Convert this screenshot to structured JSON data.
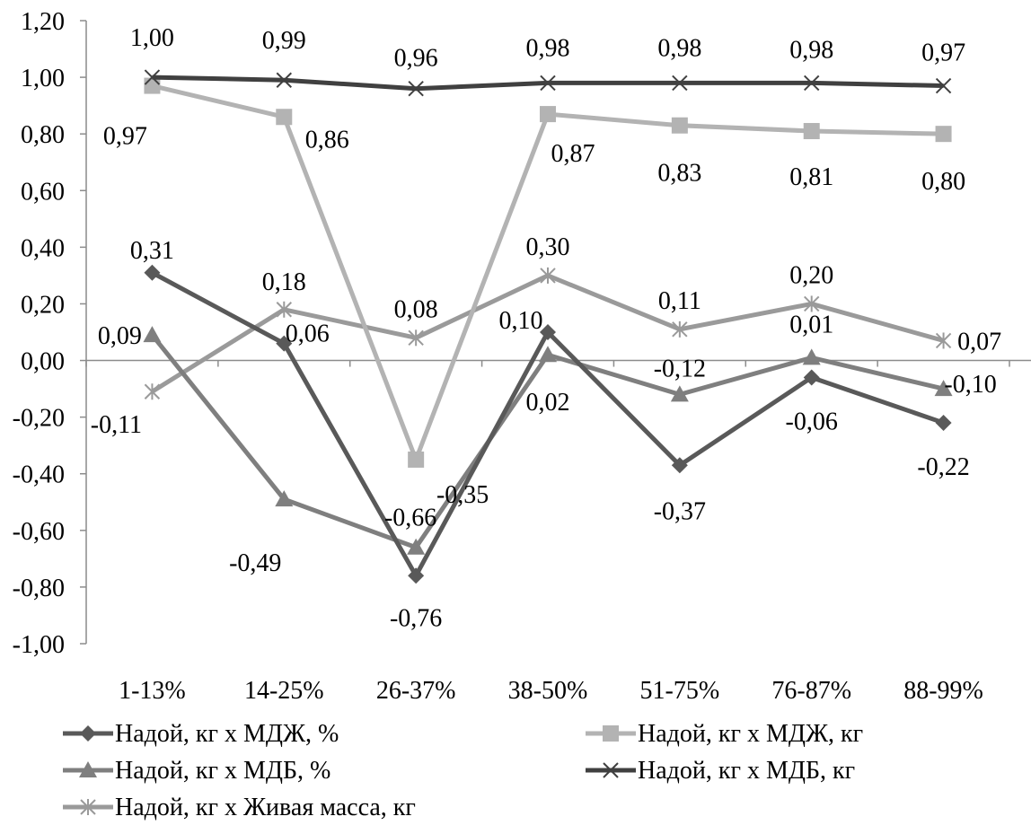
{
  "chart_data": {
    "type": "line",
    "title": "",
    "xlabel": "",
    "ylabel": "",
    "categories": [
      "1-13%",
      "14-25%",
      "26-37%",
      "38-50%",
      "51-75%",
      "76-87%",
      "88-99%"
    ],
    "ylim": [
      -1.0,
      1.2
    ],
    "y_ticks": [
      {
        "value": 1.2,
        "label": "1,20"
      },
      {
        "value": 1.0,
        "label": "1,00"
      },
      {
        "value": 0.8,
        "label": "0,80"
      },
      {
        "value": 0.6,
        "label": "0,60"
      },
      {
        "value": 0.4,
        "label": "0,40"
      },
      {
        "value": 0.2,
        "label": "0,20"
      },
      {
        "value": 0.0,
        "label": "0,00"
      },
      {
        "value": -0.2,
        "label": "-0,20"
      },
      {
        "value": -0.4,
        "label": "-0,40"
      },
      {
        "value": -0.6,
        "label": "-0,60"
      },
      {
        "value": -0.8,
        "label": "-0,80"
      },
      {
        "value": -1.0,
        "label": "-1,00"
      }
    ],
    "grid": false,
    "legend_position": "bottom",
    "series": [
      {
        "name": "Надой, кг х МДЖ, %",
        "marker": "diamond",
        "color": "#595959",
        "values": [
          0.31,
          0.06,
          -0.76,
          0.1,
          -0.37,
          -0.06,
          -0.22
        ],
        "labels": [
          "0,31",
          "0,06",
          "-0,76",
          "0,10",
          "-0,37",
          "-0,06",
          "-0,22"
        ]
      },
      {
        "name": "Надой, кг х МДЖ, кг",
        "marker": "square",
        "color": "#b3b3b3",
        "values": [
          0.97,
          0.86,
          -0.35,
          0.87,
          0.83,
          0.81,
          0.8
        ],
        "labels": [
          "0,97",
          "0,86",
          "-0,35",
          "0,87",
          "0,83",
          "0,81",
          "0,80"
        ]
      },
      {
        "name": "Надой, кг х МДБ, %",
        "marker": "triangle",
        "color": "#7f7f7f",
        "values": [
          0.09,
          -0.49,
          -0.66,
          0.02,
          -0.12,
          0.01,
          -0.1
        ],
        "labels": [
          "0,09",
          "-0,49",
          "-0,66",
          "0,02",
          "-0,12",
          "0,01",
          "-0,10"
        ]
      },
      {
        "name": "Надой, кг х МДБ, кг",
        "marker": "x",
        "color": "#404040",
        "values": [
          1.0,
          0.99,
          0.96,
          0.98,
          0.98,
          0.98,
          0.97
        ],
        "labels": [
          "1,00",
          "0,99",
          "0,96",
          "0,98",
          "0,98",
          "0,98",
          "0,97"
        ]
      },
      {
        "name": "Надой, кг х Живая масса, кг",
        "marker": "star",
        "color": "#9a9a9a",
        "values": [
          -0.11,
          0.18,
          0.08,
          0.3,
          0.11,
          0.2,
          0.07
        ],
        "labels": [
          "-0,11",
          "0,18",
          "0,08",
          "0,30",
          "0,11",
          "0,20",
          "0,07"
        ]
      }
    ]
  }
}
